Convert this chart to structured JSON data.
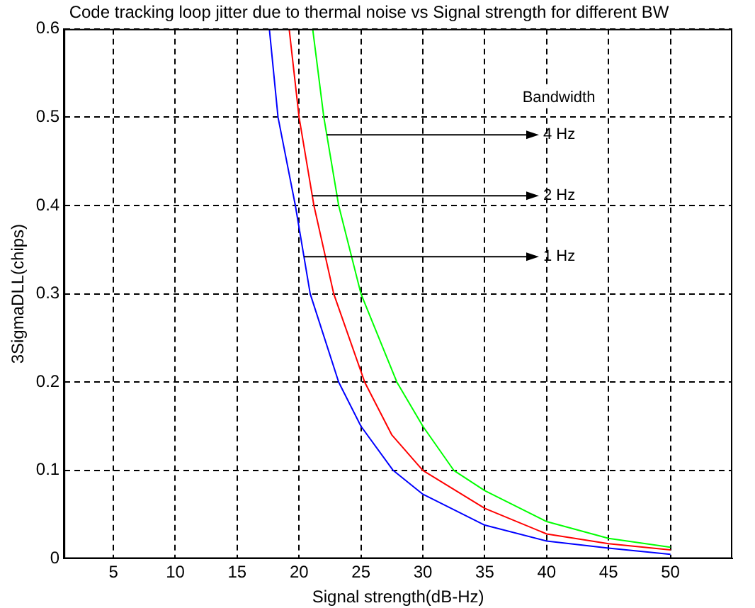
{
  "chart_data": {
    "type": "line",
    "title": "Code tracking loop jitter due to thermal noise vs Signal strength for different BW",
    "xlabel": "Signal strength(dB-Hz)",
    "ylabel": "3SigmaDLL(chips)",
    "series": [
      {
        "color": "#00ff00",
        "x": [
          21.1,
          22,
          23.2,
          25,
          27.9,
          30,
          32.5,
          35,
          40,
          45,
          50
        ],
        "values": [
          0.6,
          0.5,
          0.4,
          0.3,
          0.2,
          0.15,
          0.1,
          0.077,
          0.042,
          0.023,
          0.013
        ]
      },
      {
        "color": "#ff0000",
        "x": [
          19.2,
          20,
          21.2,
          22.8,
          25.3,
          27.5,
          30,
          35,
          40,
          45,
          50
        ],
        "values": [
          0.6,
          0.5,
          0.4,
          0.3,
          0.2,
          0.14,
          0.1,
          0.057,
          0.028,
          0.017,
          0.01
        ]
      },
      {
        "color": "#0000ff",
        "x": [
          17.6,
          18.3,
          19.7,
          20.9,
          23.2,
          25,
          27.6,
          30,
          35,
          40,
          45,
          50
        ],
        "values": [
          0.6,
          0.5,
          0.4,
          0.3,
          0.2,
          0.15,
          0.1,
          0.073,
          0.038,
          0.02,
          0.012,
          0.005
        ]
      }
    ],
    "annotations": [
      "Bandwidth",
      "4 Hz",
      "2 Hz",
      "1 Hz"
    ],
    "xlim": [
      1,
      55
    ],
    "xticks": [
      5,
      10,
      15,
      20,
      25,
      30,
      35,
      40,
      45,
      50
    ],
    "ylim": [
      0,
      0.6
    ],
    "yticks": [
      0,
      0.1,
      0.2,
      0.3,
      0.4,
      0.5,
      0.6
    ],
    "grid": true,
    "legend": false,
    "line_style": "solid",
    "marker": "none"
  }
}
